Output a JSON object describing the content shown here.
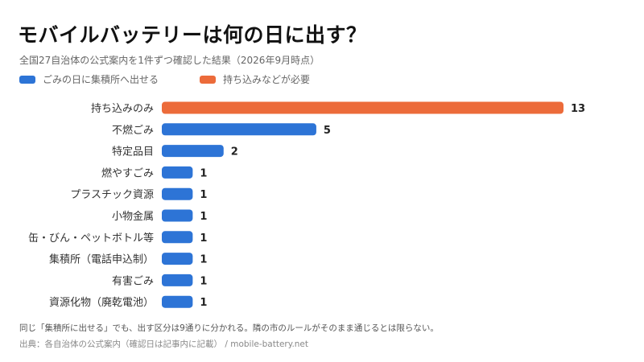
{
  "title": "モバイルバッテリーは何の日に出す？",
  "subtitle": "全国27自治体の公式案内を1件ずつ確認した結果（2026年9月時点）",
  "legend": [
    {
      "label": "ごみの日に集積所へ出せる",
      "color": "#2d74d6"
    },
    {
      "label": "持ち込みなどが必要",
      "color": "#ec6b3a"
    }
  ],
  "note": "同じ「集積所に出せる」でも、出す区分は9通りに分かれる。隣の市のルールがそのまま通じるとは限らない。",
  "source": "出典：各自治体の公式案内（確認日は記事内に記載） / mobile-battery.net",
  "chart_data": {
    "type": "bar",
    "orientation": "horizontal",
    "categories": [
      "持ち込みのみ",
      "不燃ごみ",
      "特定品目",
      "燃やすごみ",
      "プラスチック資源",
      "小物金属",
      "缶・びん・ペットボトル等",
      "集積所（電話申込制）",
      "有害ごみ",
      "資源化物（廃乾電池）"
    ],
    "values": [
      13,
      5,
      2,
      1,
      1,
      1,
      1,
      1,
      1,
      1
    ],
    "groups": [
      "持ち込みなどが必要",
      "ごみの日に集積所へ出せる",
      "ごみの日に集積所へ出せる",
      "ごみの日に集積所へ出せる",
      "ごみの日に集積所へ出せる",
      "ごみの日に集積所へ出せる",
      "ごみの日に集積所へ出せる",
      "ごみの日に集積所へ出せる",
      "ごみの日に集積所へ出せる",
      "ごみの日に集積所へ出せる"
    ],
    "xlim": [
      0,
      13
    ],
    "grid": false,
    "legend_position": "top-left"
  }
}
